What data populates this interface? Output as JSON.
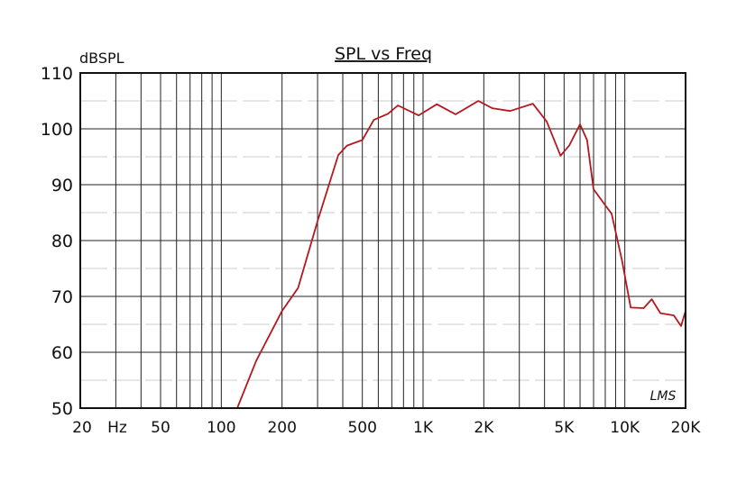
{
  "chart_data": {
    "type": "line",
    "title": "SPL vs Freq",
    "ylabel": "dBSPL",
    "xlabel": "",
    "xscale": "log",
    "xlim": [
      20,
      20000
    ],
    "ylim": [
      50,
      110
    ],
    "grid": true,
    "yticks": [
      50,
      60,
      70,
      80,
      90,
      100,
      110
    ],
    "xticks": [
      {
        "value": 20,
        "label": "20"
      },
      {
        "value": 50,
        "label": "50"
      },
      {
        "value": 100,
        "label": "100"
      },
      {
        "value": 200,
        "label": "200"
      },
      {
        "value": 500,
        "label": "500"
      },
      {
        "value": 1000,
        "label": "1K"
      },
      {
        "value": 2000,
        "label": "2K"
      },
      {
        "value": 5000,
        "label": "5K"
      },
      {
        "value": 10000,
        "label": "10K"
      },
      {
        "value": 20000,
        "label": "20K"
      }
    ],
    "x_unit_label": "Hz",
    "watermark": "LMS",
    "series": [
      {
        "name": "SPL",
        "color": "#b3191e",
        "points": [
          [
            50,
            50
          ],
          [
            120,
            50
          ],
          [
            149,
            58.5
          ],
          [
            200,
            67.4
          ],
          [
            240,
            71.5
          ],
          [
            300,
            83.5
          ],
          [
            380,
            95.3
          ],
          [
            420,
            97
          ],
          [
            500,
            98
          ],
          [
            570,
            101.6
          ],
          [
            670,
            102.7
          ],
          [
            750,
            104.2
          ],
          [
            950,
            102.4
          ],
          [
            1170,
            104.4
          ],
          [
            1450,
            102.6
          ],
          [
            1880,
            105
          ],
          [
            2200,
            103.7
          ],
          [
            2700,
            103.2
          ],
          [
            3500,
            104.5
          ],
          [
            4100,
            101.3
          ],
          [
            4800,
            95.2
          ],
          [
            5300,
            97
          ],
          [
            6000,
            100.8
          ],
          [
            6500,
            98
          ],
          [
            7000,
            89.2
          ],
          [
            8000,
            86.3
          ],
          [
            8600,
            84.8
          ],
          [
            9700,
            76.3
          ],
          [
            10700,
            68
          ],
          [
            12400,
            67.9
          ],
          [
            13600,
            69.5
          ],
          [
            15000,
            67
          ],
          [
            17500,
            66.6
          ],
          [
            19000,
            64.7
          ],
          [
            20000,
            67.4
          ]
        ]
      }
    ]
  }
}
